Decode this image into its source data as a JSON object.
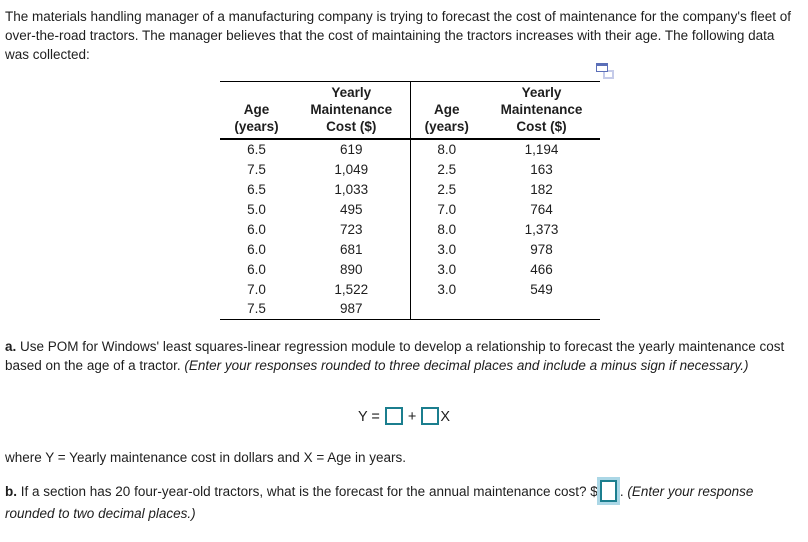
{
  "intro": "The materials handling manager of a manufacturing company is trying to forecast the cost of maintenance for the company's fleet of over-the-road tractors. The manager believes that the cost of maintaining the tractors increases with their age. The following data was collected:",
  "table": {
    "header": {
      "age_label": "Age",
      "age_unit": "(years)",
      "cost_line1": "Yearly",
      "cost_line2": "Maintenance",
      "cost_line3": "Cost ($)"
    },
    "left_rows": [
      [
        "6.5",
        "619"
      ],
      [
        "7.5",
        "1,049"
      ],
      [
        "6.5",
        "1,033"
      ],
      [
        "5.0",
        "495"
      ],
      [
        "6.0",
        "723"
      ],
      [
        "6.0",
        "681"
      ],
      [
        "6.0",
        "890"
      ],
      [
        "7.0",
        "1,522"
      ],
      [
        "7.5",
        "987"
      ]
    ],
    "right_rows": [
      [
        "8.0",
        "1,194"
      ],
      [
        "2.5",
        "163"
      ],
      [
        "2.5",
        "182"
      ],
      [
        "7.0",
        "764"
      ],
      [
        "8.0",
        "1,373"
      ],
      [
        "3.0",
        "978"
      ],
      [
        "3.0",
        "466"
      ],
      [
        "3.0",
        "549"
      ],
      [
        "",
        ""
      ]
    ]
  },
  "icons": {
    "popout_icon": "overlapping-windows-popout"
  },
  "part_a": {
    "label": "a.",
    "text": " Use POM for Windows' least squares-linear regression module to develop a relationship to forecast the yearly maintenance cost based on the age of a tractor. ",
    "italic": "(Enter your responses rounded to three decimal places and include a minus sign if necessary.)"
  },
  "equation": {
    "lhs": "Y",
    "equals": "=",
    "plus": "+",
    "x_var": "X",
    "intercept_value": "",
    "slope_value": ""
  },
  "where_line": "where Y = Yearly maintenance cost in dollars and X = Age in years.",
  "part_b": {
    "label": "b.",
    "text": " If a section has 20 four-year-old tractors, what is the forecast for the annual maintenance cost? $",
    "after_box": ". ",
    "italic": "(Enter your response rounded to two decimal places.)",
    "answer_value": ""
  },
  "colors": {
    "input_border": "#1b7e8e",
    "focus_glow": "#abd7e6",
    "icon_front": "#5b6fb8",
    "icon_back": "#c5cbe9",
    "table_border": "#000000",
    "text": "#1e1e1e"
  }
}
